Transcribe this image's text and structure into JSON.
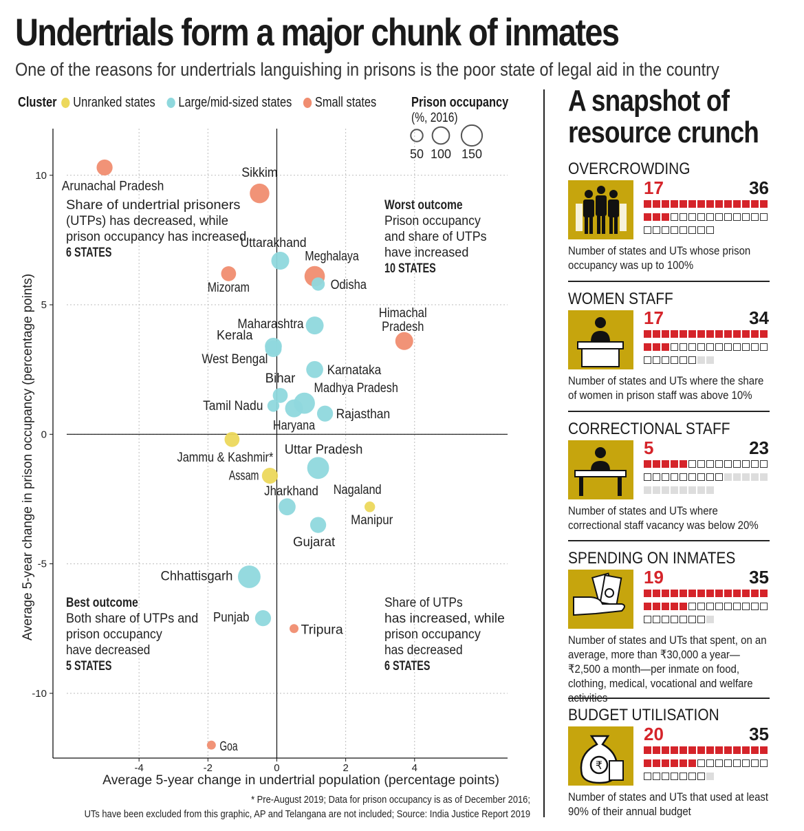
{
  "title": "Undertrials form a major chunk of inmates",
  "subtitle": "One of the reasons for undertrials languishing in prisons is the poor state of legal aid in the country",
  "legend": {
    "cluster_label": "Cluster",
    "items": [
      {
        "label": "Unranked states",
        "color": "#ecd85c"
      },
      {
        "label": "Large/mid-sized states",
        "color": "#8fd8dd"
      },
      {
        "label": "Small states",
        "color": "#f08d70"
      }
    ],
    "occupancy_title": "Prison occupancy",
    "occupancy_unit": "(%, 2016)",
    "occupancy_sizes": [
      "50",
      "100",
      "150"
    ]
  },
  "chart_data": {
    "type": "scatter",
    "xlabel": "Average 5-year change in undertrial population (percentage points)",
    "ylabel": "Average 5-year change in prison occupancy (percentage points)",
    "xlim": [
      -6.1,
      6.7
    ],
    "ylim": [
      -12.5,
      11.8
    ],
    "xticks": [
      -4,
      -2,
      0,
      2,
      4
    ],
    "yticks": [
      -10,
      -5,
      0,
      5,
      10
    ],
    "xtick_labels": [
      "-4",
      "-2",
      "0",
      "2",
      "4"
    ],
    "ytick_labels": [
      "-10",
      "-5",
      "0",
      "5",
      "10"
    ],
    "grid": true,
    "points": [
      {
        "name": "Arunachal Pradesh",
        "x": -5.0,
        "y": 10.3,
        "occupancy": 80,
        "cluster": "Small states"
      },
      {
        "name": "Sikkim",
        "x": -0.5,
        "y": 9.3,
        "occupancy": 120,
        "cluster": "Small states"
      },
      {
        "name": "Uttarakhand",
        "x": 0.1,
        "y": 6.7,
        "occupancy": 100,
        "cluster": "Large/mid-sized states"
      },
      {
        "name": "Meghalaya",
        "x": 1.1,
        "y": 6.1,
        "occupancy": 130,
        "cluster": "Small states"
      },
      {
        "name": "Mizoram",
        "x": -1.4,
        "y": 6.2,
        "occupancy": 70,
        "cluster": "Small states"
      },
      {
        "name": "Odisha",
        "x": 1.2,
        "y": 5.8,
        "occupancy": 55,
        "cluster": "Large/mid-sized states"
      },
      {
        "name": "Himachal Pradesh",
        "x": 3.7,
        "y": 3.6,
        "occupancy": 100,
        "cluster": "Small states"
      },
      {
        "name": "Maharashtra",
        "x": 1.1,
        "y": 4.2,
        "occupancy": 100,
        "cluster": "Large/mid-sized states"
      },
      {
        "name": "Kerala",
        "x": -0.1,
        "y": 3.4,
        "occupancy": 90,
        "cluster": "Large/mid-sized states"
      },
      {
        "name": "West Bengal",
        "x": -0.1,
        "y": 3.3,
        "occupancy": 85,
        "cluster": "Large/mid-sized states"
      },
      {
        "name": "Karnataka",
        "x": 1.1,
        "y": 2.5,
        "occupancy": 90,
        "cluster": "Large/mid-sized states"
      },
      {
        "name": "Bihar",
        "x": 0.1,
        "y": 1.5,
        "occupancy": 70,
        "cluster": "Large/mid-sized states"
      },
      {
        "name": "Madhya Pradesh",
        "x": 0.8,
        "y": 1.2,
        "occupancy": 140,
        "cluster": "Large/mid-sized states"
      },
      {
        "name": "Tamil Nadu",
        "x": -0.1,
        "y": 1.1,
        "occupancy": 45,
        "cluster": "Large/mid-sized states"
      },
      {
        "name": "Haryana",
        "x": 0.5,
        "y": 1.0,
        "occupancy": 100,
        "cluster": "Large/mid-sized states"
      },
      {
        "name": "Rajasthan",
        "x": 1.4,
        "y": 0.8,
        "occupancy": 80,
        "cluster": "Large/mid-sized states"
      },
      {
        "name": "Jammu & Kashmir*",
        "x": -1.3,
        "y": -0.2,
        "occupancy": 70,
        "cluster": "Unranked states"
      },
      {
        "name": "Uttar Pradesh",
        "x": 1.2,
        "y": -1.3,
        "occupancy": 150,
        "cluster": "Large/mid-sized states"
      },
      {
        "name": "Assam",
        "x": -0.2,
        "y": -1.6,
        "occupancy": 80,
        "cluster": "Unranked states"
      },
      {
        "name": "Jharkhand",
        "x": 0.3,
        "y": -2.8,
        "occupancy": 90,
        "cluster": "Large/mid-sized states"
      },
      {
        "name": "Nagaland",
        "x": 2.7,
        "y": -2.8,
        "occupancy": 35,
        "cluster": "Unranked states"
      },
      {
        "name": "Manipur",
        "x": 2.7,
        "y": -2.8,
        "occupancy": 35,
        "cluster": "Unranked states"
      },
      {
        "name": "Gujarat",
        "x": 1.2,
        "y": -3.5,
        "occupancy": 80,
        "cluster": "Large/mid-sized states"
      },
      {
        "name": "Chhattisgarh",
        "x": -0.8,
        "y": -5.5,
        "occupancy": 160,
        "cluster": "Large/mid-sized states"
      },
      {
        "name": "Punjab",
        "x": -0.4,
        "y": -7.1,
        "occupancy": 80,
        "cluster": "Large/mid-sized states"
      },
      {
        "name": "Tripura",
        "x": 0.5,
        "y": -7.5,
        "occupancy": 25,
        "cluster": "Small states"
      },
      {
        "name": "Goa",
        "x": -1.9,
        "y": -12.0,
        "occupancy": 25,
        "cluster": "Small states"
      }
    ],
    "quadrants": [
      {
        "head": "",
        "lines": [
          "Share of undertrial prisoners",
          "(UTPs) has decreased, while",
          "prison occupancy has increased"
        ],
        "count": "6 STATES"
      },
      {
        "head": "Worst outcome",
        "lines": [
          "Prison occupancy",
          "and share of UTPs",
          "have increased"
        ],
        "count": "10 STATES"
      },
      {
        "head": "Best outcome",
        "lines": [
          "Both share of UTPs and",
          "prison occupancy",
          "have decreased"
        ],
        "count": "5 STATES"
      },
      {
        "head": "",
        "lines": [
          "Share of UTPs",
          "has increased, while",
          "prison occupancy",
          "has decreased"
        ],
        "count": "6 STATES"
      }
    ]
  },
  "footnote": {
    "line1": "* Pre-August 2019; Data for prison occupancy is as of December 2016;",
    "line2": "UTs have been excluded from this graphic, AP and Telangana are not included; Source: India Justice Report 2019"
  },
  "snapshot": {
    "title_line1": "A snapshot of",
    "title_line2": "resource crunch",
    "sections": [
      {
        "heading": "OVERCROWDING",
        "value": "17",
        "total": "36",
        "red": 17,
        "empty": 19,
        "gray": 0,
        "icon": "prisoners-icon",
        "description": "Number of states and UTs whose prison occupancy was up to 100%"
      },
      {
        "heading": "WOMEN STAFF",
        "value": "17",
        "total": "34",
        "red": 17,
        "empty": 17,
        "gray": 2,
        "icon": "woman-officer-icon",
        "description": "Number of states and UTs where the share of women in prison staff was above 10%"
      },
      {
        "heading": "CORRECTIONAL STAFF",
        "value": "5",
        "total": "23",
        "red": 5,
        "empty": 18,
        "gray": 13,
        "icon": "correctional-officer-icon",
        "description": "Number of states and UTs where correctional staff vacancy was below 20%"
      },
      {
        "heading": "SPENDING ON INMATES",
        "value": "19",
        "total": "35",
        "red": 19,
        "empty": 16,
        "gray": 1,
        "icon": "cash-hand-icon",
        "description": "Number of states and UTs that spent, on an average, more than ₹30,000 a year—₹2,500 a month—per inmate on food, clothing, medical, vocational and welfare activities"
      },
      {
        "heading": "BUDGET UTILISATION",
        "value": "20",
        "total": "35",
        "red": 20,
        "empty": 15,
        "gray": 1,
        "icon": "money-bag-icon",
        "description": "Number of states and UTs that used at least 90% of their annual budget"
      }
    ]
  }
}
